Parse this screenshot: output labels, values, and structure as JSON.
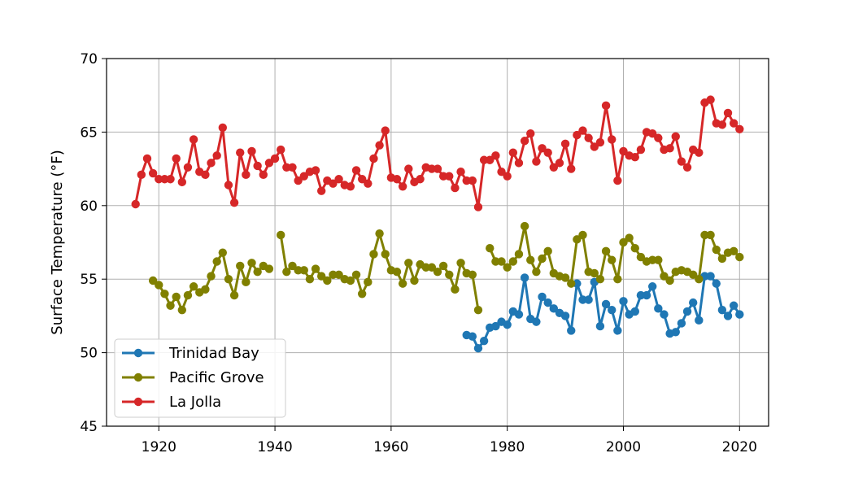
{
  "chart_data": {
    "type": "line",
    "xlabel": "",
    "ylabel": "Surface Temperature (°F)",
    "xlim": [
      1911,
      2025
    ],
    "ylim": [
      45,
      70
    ],
    "xticks": [
      1920,
      1940,
      1960,
      1980,
      2000,
      2020
    ],
    "yticks": [
      45,
      50,
      55,
      60,
      65,
      70
    ],
    "grid": true,
    "legend_position": "lower-left",
    "series": [
      {
        "name": "Trinidad Bay",
        "color": "#1f77b4",
        "segments": [
          {
            "x": [
              1973,
              1974,
              1975,
              1976,
              1977,
              1978,
              1979,
              1980,
              1981,
              1982,
              1983,
              1984,
              1985,
              1986,
              1987,
              1988,
              1989,
              1990,
              1991,
              1992,
              1993,
              1994,
              1995,
              1996,
              1997,
              1998,
              1999,
              2000,
              2001,
              2002,
              2003,
              2004,
              2005,
              2006,
              2007,
              2008,
              2009,
              2010,
              2011,
              2012,
              2013,
              2014,
              2015,
              2016,
              2017,
              2018,
              2019,
              2020
            ],
            "y": [
              51.2,
              51.1,
              50.3,
              50.8,
              51.7,
              51.8,
              52.1,
              51.9,
              52.8,
              52.6,
              55.1,
              52.3,
              52.1,
              53.8,
              53.4,
              53.0,
              52.7,
              52.5,
              51.5,
              54.7,
              53.6,
              53.6,
              54.8,
              51.8,
              53.3,
              52.9,
              51.5,
              53.5,
              52.6,
              52.8,
              53.9,
              53.9,
              54.5,
              53.0,
              52.6,
              51.3,
              51.4,
              52.0,
              52.8,
              53.4,
              52.2,
              55.2,
              55.2,
              54.7,
              52.9,
              52.5,
              53.2,
              52.6
            ]
          }
        ]
      },
      {
        "name": "Pacific Grove",
        "color": "#808000",
        "segments": [
          {
            "x": [
              1919,
              1920,
              1921,
              1922,
              1923,
              1924,
              1925,
              1926,
              1927,
              1928,
              1929,
              1930,
              1931,
              1932,
              1933,
              1934,
              1935,
              1936,
              1937,
              1938,
              1939
            ],
            "y": [
              54.9,
              54.6,
              54.0,
              53.2,
              53.8,
              52.9,
              53.9,
              54.5,
              54.1,
              54.3,
              55.2,
              56.2,
              56.8,
              55.0,
              53.9,
              55.9,
              54.8,
              56.1,
              55.5,
              55.9,
              55.7
            ]
          },
          {
            "x": [
              1941,
              1942,
              1943,
              1944,
              1945,
              1946,
              1947,
              1948,
              1949,
              1950,
              1951,
              1952,
              1953,
              1954,
              1955,
              1956,
              1957,
              1958,
              1959,
              1960,
              1961,
              1962,
              1963,
              1964,
              1965,
              1966,
              1967,
              1968,
              1969,
              1970,
              1971,
              1972,
              1973,
              1974,
              1975
            ],
            "y": [
              58.0,
              55.5,
              55.9,
              55.6,
              55.6,
              55.0,
              55.7,
              55.2,
              54.9,
              55.3,
              55.3,
              55.0,
              54.9,
              55.3,
              54.0,
              54.8,
              56.7,
              58.1,
              56.7,
              55.6,
              55.5,
              54.7,
              56.1,
              54.9,
              56.0,
              55.8,
              55.8,
              55.5,
              55.9,
              55.3,
              54.3,
              56.1,
              55.4,
              55.3,
              52.9
            ]
          },
          {
            "x": [
              1977,
              1978,
              1979,
              1980,
              1981,
              1982,
              1983,
              1984,
              1985,
              1986,
              1987,
              1988,
              1989,
              1990,
              1991,
              1992,
              1993,
              1994,
              1995,
              1996,
              1997,
              1998,
              1999,
              2000,
              2001,
              2002,
              2003,
              2004,
              2005,
              2006,
              2007,
              2008,
              2009,
              2010,
              2011,
              2012,
              2013,
              2014,
              2015,
              2016,
              2017,
              2018,
              2019,
              2020
            ],
            "y": [
              57.1,
              56.2,
              56.2,
              55.8,
              56.2,
              56.7,
              58.6,
              56.3,
              55.5,
              56.4,
              56.9,
              55.4,
              55.2,
              55.1,
              54.7,
              57.7,
              58.0,
              55.5,
              55.4,
              55.0,
              56.9,
              56.3,
              55.0,
              57.5,
              57.8,
              57.1,
              56.5,
              56.2,
              56.3,
              56.3,
              55.2,
              54.9,
              55.5,
              55.6,
              55.5,
              55.3,
              55.0,
              58.0,
              58.0,
              57.0,
              56.4,
              56.8,
              56.9,
              56.5
            ]
          }
        ]
      },
      {
        "name": "La Jolla",
        "color": "#d62728",
        "segments": [
          {
            "x": [
              1916,
              1917,
              1918,
              1919,
              1920,
              1921,
              1922,
              1923,
              1924,
              1925,
              1926,
              1927,
              1928,
              1929,
              1930,
              1931,
              1932,
              1933,
              1934,
              1935,
              1936,
              1937,
              1938,
              1939,
              1940,
              1941,
              1942,
              1943,
              1944,
              1945,
              1946,
              1947,
              1948,
              1949,
              1950,
              1951,
              1952,
              1953,
              1954,
              1955,
              1956,
              1957,
              1958,
              1959,
              1960,
              1961,
              1962,
              1963,
              1964,
              1965,
              1966,
              1967,
              1968,
              1969,
              1970,
              1971,
              1972,
              1973,
              1974,
              1975,
              1976,
              1977,
              1978,
              1979,
              1980,
              1981,
              1982,
              1983,
              1984,
              1985,
              1986,
              1987,
              1988,
              1989,
              1990,
              1991,
              1992,
              1993,
              1994,
              1995,
              1996,
              1997,
              1998,
              1999,
              2000,
              2001,
              2002,
              2003,
              2004,
              2005,
              2006,
              2007,
              2008,
              2009,
              2010,
              2011,
              2012,
              2013,
              2014,
              2015,
              2016,
              2017,
              2018,
              2019,
              2020
            ],
            "y": [
              60.1,
              62.1,
              63.2,
              62.2,
              61.8,
              61.8,
              61.8,
              63.2,
              61.6,
              62.6,
              64.5,
              62.3,
              62.1,
              62.9,
              63.4,
              65.3,
              61.4,
              60.2,
              63.6,
              62.1,
              63.7,
              62.7,
              62.1,
              62.9,
              63.2,
              63.8,
              62.6,
              62.6,
              61.7,
              62.0,
              62.3,
              62.4,
              61.0,
              61.7,
              61.5,
              61.8,
              61.4,
              61.3,
              62.4,
              61.8,
              61.5,
              63.2,
              64.1,
              65.1,
              61.9,
              61.8,
              61.3,
              62.5,
              61.6,
              61.8,
              62.6,
              62.5,
              62.5,
              62.0,
              62.0,
              61.2,
              62.3,
              61.7,
              61.7,
              59.9,
              63.1,
              63.1,
              63.4,
              62.3,
              62.0,
              63.6,
              62.9,
              64.4,
              64.9,
              63.0,
              63.9,
              63.6,
              62.6,
              62.9,
              64.2,
              62.5,
              64.8,
              65.1,
              64.6,
              64.0,
              64.3,
              66.8,
              64.5,
              61.7,
              63.7,
              63.4,
              63.3,
              63.8,
              65.0,
              64.9,
              64.6,
              63.8,
              63.9,
              64.7,
              63.0,
              62.6,
              63.8,
              63.6,
              67.0,
              67.2,
              65.6,
              65.5,
              66.3,
              65.6,
              65.2
            ]
          }
        ]
      }
    ]
  }
}
